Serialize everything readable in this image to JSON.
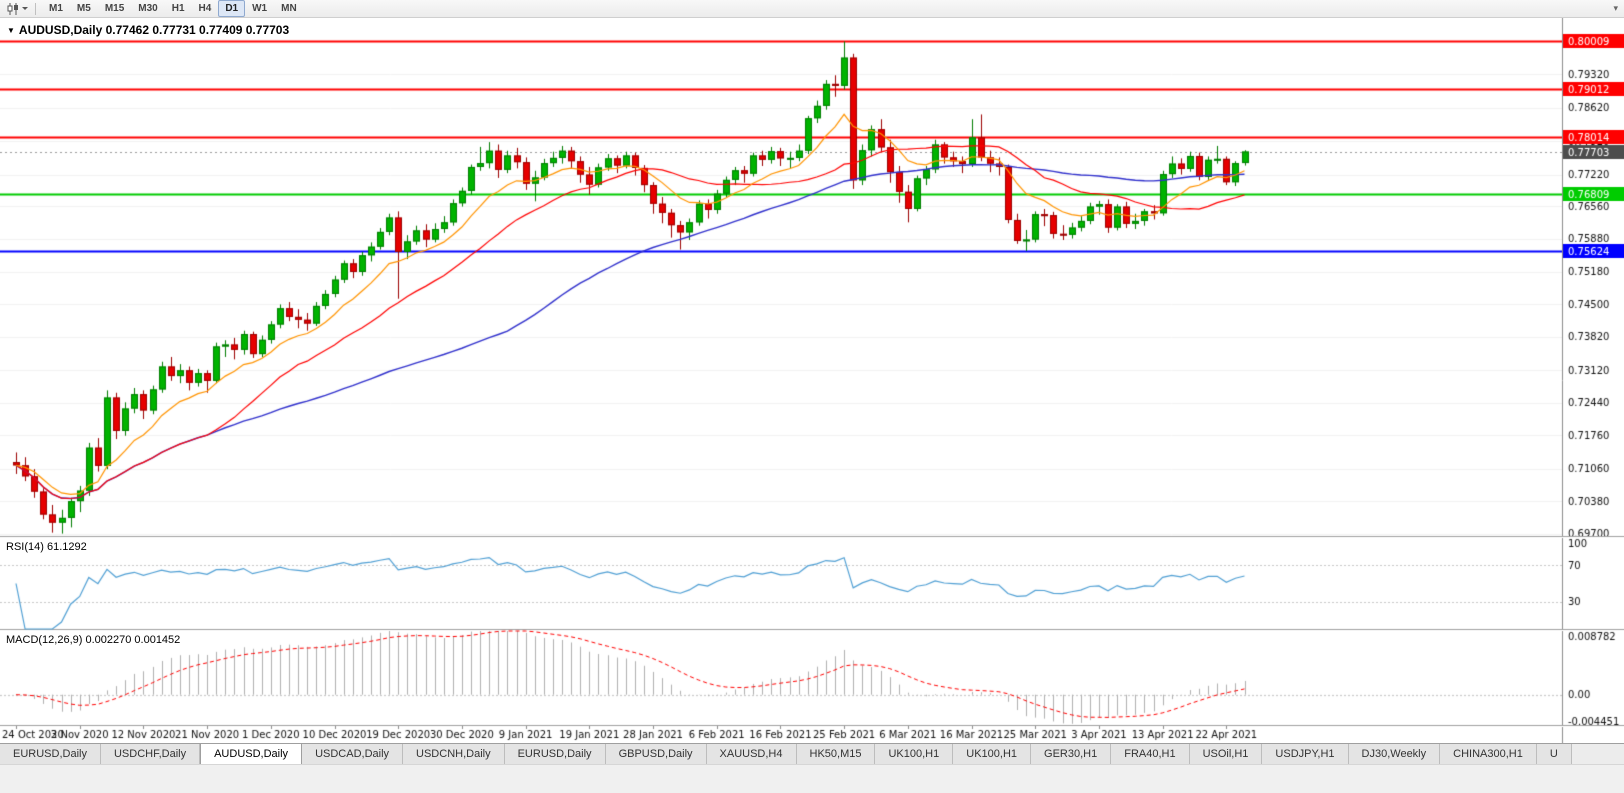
{
  "toolbar": {
    "chart_icon": "candlestick-chart-icon",
    "timeframes": [
      {
        "label": "M1",
        "active": false
      },
      {
        "label": "M5",
        "active": false
      },
      {
        "label": "M15",
        "active": false
      },
      {
        "label": "M30",
        "active": false
      },
      {
        "label": "H1",
        "active": false
      },
      {
        "label": "H4",
        "active": false
      },
      {
        "label": "D1",
        "active": true
      },
      {
        "label": "W1",
        "active": false
      },
      {
        "label": "MN",
        "active": false
      }
    ],
    "overflow_icon": "▾"
  },
  "chart_data": {
    "type": "candlestick",
    "symbol": "AUDUSD",
    "timeframe": "Daily",
    "title_symbol": "AUDUSD,Daily",
    "title_ohlc": "0.77462 0.77731 0.77409 0.77703",
    "current_ohlc": {
      "open": 0.77462,
      "high": 0.77731,
      "low": 0.77409,
      "close": 0.77703
    },
    "price_range": {
      "min": 0.6965,
      "max": 0.805
    },
    "price_axis_labels": [
      "0.79320",
      "0.78620",
      "0.77920",
      "0.77220",
      "0.76560",
      "0.75880",
      "0.75180",
      "0.74500",
      "0.73820",
      "0.73120",
      "0.72440",
      "0.71760",
      "0.71060",
      "0.70380",
      "0.69700"
    ],
    "x_labels": [
      "24 Oct 2020",
      "3 Nov 2020",
      "12 Nov 2020",
      "21 Nov 2020",
      "1 Dec 2020",
      "10 Dec 2020",
      "19 Dec 2020",
      "30 Dec 2020",
      "9 Jan 2021",
      "19 Jan 2021",
      "28 Jan 2021",
      "6 Feb 2021",
      "16 Feb 2021",
      "25 Feb 2021",
      "6 Mar 2021",
      "16 Mar 2021",
      "25 Mar 2021",
      "3 Apr 2021",
      "13 Apr 2021",
      "22 Apr 2021"
    ],
    "x_label_every_n_bars": 7,
    "horizontal_levels": [
      {
        "price": 0.80009,
        "label": "0.80009",
        "color": "#ff0000"
      },
      {
        "price": 0.79012,
        "label": "0.79012",
        "color": "#ff0000"
      },
      {
        "price": 0.78014,
        "label": "0.78014",
        "color": "#ff0000"
      },
      {
        "price": 0.76809,
        "label": "0.76809",
        "color": "#00cc00"
      },
      {
        "price": 0.75624,
        "label": "0.75624",
        "color": "#0000ff"
      }
    ],
    "current_price": {
      "value": 0.77703,
      "label": "0.77703",
      "tag_color": "#4d4d4d"
    },
    "style": {
      "up_fill": "#00b300",
      "up_border": "#007d00",
      "down_fill": "#e60000",
      "down_border": "#9c0000",
      "grid_color": "#f2f2f2",
      "axis_line_color": "#8c8c8c",
      "axis_text_color": "#111111"
    },
    "moving_averages": [
      {
        "type": "ema",
        "period": 10,
        "color": "#ff9400"
      },
      {
        "type": "sma",
        "period": 22,
        "color": "#ff0000"
      },
      {
        "type": "sma",
        "period": 55,
        "color": "#3030cc"
      }
    ],
    "indicators": [
      {
        "name": "RSI",
        "label": "RSI(14) 61.1292",
        "period": 14,
        "levels": [
          70,
          30
        ],
        "axis_labels": [
          "100",
          "70",
          "30"
        ],
        "range": [
          0,
          100
        ],
        "line_color": "#4f9fd4"
      },
      {
        "name": "MACD",
        "label": "MACD(12,26,9) 0.002270 0.001452",
        "fast": 12,
        "slow": 26,
        "signal": 9,
        "axis_labels": [
          "0.008782",
          "0.00",
          "-0.004451"
        ],
        "range": [
          -0.004451,
          0.008782
        ],
        "histogram_color": "#b0b0b0",
        "signal_color": "#ff0000"
      }
    ],
    "candles": [
      [
        0.712,
        0.714,
        0.7095,
        0.7113
      ],
      [
        0.7113,
        0.713,
        0.708,
        0.709
      ],
      [
        0.709,
        0.7105,
        0.7045,
        0.7058
      ],
      [
        0.7058,
        0.7065,
        0.7,
        0.701
      ],
      [
        0.701,
        0.703,
        0.6972,
        0.6993
      ],
      [
        0.6993,
        0.702,
        0.697,
        0.7003
      ],
      [
        0.7003,
        0.7045,
        0.6983,
        0.7038
      ],
      [
        0.7038,
        0.707,
        0.7015,
        0.706
      ],
      [
        0.706,
        0.716,
        0.7049,
        0.715
      ],
      [
        0.715,
        0.717,
        0.71,
        0.7112
      ],
      [
        0.7112,
        0.727,
        0.7105,
        0.7255
      ],
      [
        0.7255,
        0.7265,
        0.7168,
        0.7185
      ],
      [
        0.7185,
        0.7245,
        0.7175,
        0.7232
      ],
      [
        0.7232,
        0.7275,
        0.7222,
        0.7262
      ],
      [
        0.7262,
        0.727,
        0.721,
        0.7228
      ],
      [
        0.7228,
        0.728,
        0.722,
        0.7272
      ],
      [
        0.7272,
        0.733,
        0.7265,
        0.732
      ],
      [
        0.732,
        0.734,
        0.729,
        0.73
      ],
      [
        0.73,
        0.7325,
        0.7285,
        0.7312
      ],
      [
        0.7312,
        0.732,
        0.727,
        0.7286
      ],
      [
        0.7286,
        0.7315,
        0.7278,
        0.7306
      ],
      [
        0.7306,
        0.7312,
        0.7265,
        0.729
      ],
      [
        0.729,
        0.737,
        0.7285,
        0.7362
      ],
      [
        0.7362,
        0.7375,
        0.734,
        0.7366
      ],
      [
        0.7366,
        0.738,
        0.7335,
        0.7355
      ],
      [
        0.7355,
        0.7395,
        0.7345,
        0.7388
      ],
      [
        0.7388,
        0.7393,
        0.7338,
        0.7346
      ],
      [
        0.7346,
        0.7385,
        0.734,
        0.7376
      ],
      [
        0.7376,
        0.7415,
        0.7368,
        0.7408
      ],
      [
        0.7408,
        0.745,
        0.74,
        0.7442
      ],
      [
        0.7442,
        0.7455,
        0.7415,
        0.7424
      ],
      [
        0.7424,
        0.744,
        0.74,
        0.7418
      ],
      [
        0.7418,
        0.7432,
        0.7395,
        0.741
      ],
      [
        0.741,
        0.7455,
        0.7405,
        0.7447
      ],
      [
        0.7447,
        0.748,
        0.744,
        0.7472
      ],
      [
        0.7472,
        0.751,
        0.7465,
        0.7502
      ],
      [
        0.7502,
        0.7542,
        0.7495,
        0.7536
      ],
      [
        0.7536,
        0.7545,
        0.7505,
        0.7518
      ],
      [
        0.7518,
        0.756,
        0.751,
        0.7553
      ],
      [
        0.7553,
        0.758,
        0.754,
        0.7571
      ],
      [
        0.7571,
        0.761,
        0.7565,
        0.7602
      ],
      [
        0.7602,
        0.764,
        0.7595,
        0.7632
      ],
      [
        0.7632,
        0.7645,
        0.7462,
        0.756
      ],
      [
        0.756,
        0.7595,
        0.7545,
        0.7582
      ],
      [
        0.7582,
        0.7615,
        0.7575,
        0.7605
      ],
      [
        0.7605,
        0.7618,
        0.757,
        0.7586
      ],
      [
        0.7586,
        0.762,
        0.758,
        0.7608
      ],
      [
        0.7608,
        0.7635,
        0.76,
        0.7622
      ],
      [
        0.7622,
        0.767,
        0.7615,
        0.7662
      ],
      [
        0.7662,
        0.7695,
        0.7655,
        0.7688
      ],
      [
        0.7688,
        0.7743,
        0.768,
        0.7738
      ],
      [
        0.7738,
        0.778,
        0.773,
        0.7746
      ],
      [
        0.7746,
        0.779,
        0.7735,
        0.7772
      ],
      [
        0.7772,
        0.7785,
        0.7715,
        0.7732
      ],
      [
        0.7732,
        0.7772,
        0.7725,
        0.7762
      ],
      [
        0.7762,
        0.7778,
        0.7735,
        0.7748
      ],
      [
        0.7748,
        0.7758,
        0.769,
        0.7703
      ],
      [
        0.7703,
        0.773,
        0.7666,
        0.7716
      ],
      [
        0.7716,
        0.7755,
        0.771,
        0.7746
      ],
      [
        0.7746,
        0.777,
        0.7738,
        0.7757
      ],
      [
        0.7757,
        0.7782,
        0.7745,
        0.7772
      ],
      [
        0.7772,
        0.778,
        0.7735,
        0.775
      ],
      [
        0.775,
        0.776,
        0.7705,
        0.7722
      ],
      [
        0.7722,
        0.7738,
        0.768,
        0.7701
      ],
      [
        0.7701,
        0.7745,
        0.7695,
        0.7737
      ],
      [
        0.7737,
        0.7765,
        0.773,
        0.7756
      ],
      [
        0.7756,
        0.7762,
        0.7725,
        0.7741
      ],
      [
        0.7741,
        0.777,
        0.7735,
        0.7762
      ],
      [
        0.7762,
        0.7768,
        0.772,
        0.7736
      ],
      [
        0.7736,
        0.7742,
        0.7685,
        0.77
      ],
      [
        0.77,
        0.7706,
        0.764,
        0.7661
      ],
      [
        0.7661,
        0.7675,
        0.762,
        0.7642
      ],
      [
        0.7642,
        0.765,
        0.759,
        0.7616
      ],
      [
        0.7616,
        0.7625,
        0.7565,
        0.7601
      ],
      [
        0.7601,
        0.763,
        0.7585,
        0.7622
      ],
      [
        0.7622,
        0.7668,
        0.7615,
        0.7661
      ],
      [
        0.7661,
        0.767,
        0.763,
        0.7648
      ],
      [
        0.7648,
        0.769,
        0.764,
        0.7682
      ],
      [
        0.7682,
        0.7718,
        0.7675,
        0.7711
      ],
      [
        0.7711,
        0.7738,
        0.77,
        0.7731
      ],
      [
        0.7731,
        0.774,
        0.7705,
        0.7724
      ],
      [
        0.7724,
        0.7768,
        0.7718,
        0.7762
      ],
      [
        0.7762,
        0.7772,
        0.774,
        0.7753
      ],
      [
        0.7753,
        0.778,
        0.7745,
        0.7771
      ],
      [
        0.7771,
        0.7778,
        0.774,
        0.7756
      ],
      [
        0.7756,
        0.777,
        0.7735,
        0.7757
      ],
      [
        0.7757,
        0.7785,
        0.775,
        0.7772
      ],
      [
        0.7772,
        0.7845,
        0.7765,
        0.784
      ],
      [
        0.784,
        0.7877,
        0.783,
        0.7866
      ],
      [
        0.7866,
        0.792,
        0.7858,
        0.7912
      ],
      [
        0.7912,
        0.793,
        0.7885,
        0.7908
      ],
      [
        0.7908,
        0.8001,
        0.79,
        0.7967
      ],
      [
        0.7967,
        0.7975,
        0.7692,
        0.771
      ],
      [
        0.771,
        0.7785,
        0.77,
        0.7773
      ],
      [
        0.7773,
        0.7825,
        0.776,
        0.7817
      ],
      [
        0.7817,
        0.7838,
        0.777,
        0.7779
      ],
      [
        0.7779,
        0.7795,
        0.7705,
        0.7727
      ],
      [
        0.7727,
        0.774,
        0.7663,
        0.7686
      ],
      [
        0.7686,
        0.77,
        0.7622,
        0.765
      ],
      [
        0.765,
        0.772,
        0.7645,
        0.7714
      ],
      [
        0.7714,
        0.774,
        0.77,
        0.7733
      ],
      [
        0.7733,
        0.7795,
        0.7725,
        0.7785
      ],
      [
        0.7785,
        0.779,
        0.7745,
        0.7758
      ],
      [
        0.7758,
        0.777,
        0.7738,
        0.775
      ],
      [
        0.775,
        0.776,
        0.7725,
        0.7744
      ],
      [
        0.7744,
        0.7838,
        0.7738,
        0.78
      ],
      [
        0.78,
        0.7848,
        0.775,
        0.7758
      ],
      [
        0.7758,
        0.7772,
        0.7727,
        0.7745
      ],
      [
        0.7745,
        0.7758,
        0.772,
        0.7738
      ],
      [
        0.7738,
        0.7743,
        0.762,
        0.7627
      ],
      [
        0.7627,
        0.764,
        0.7577,
        0.7583
      ],
      [
        0.7583,
        0.7606,
        0.7562,
        0.7586
      ],
      [
        0.7586,
        0.7645,
        0.758,
        0.7639
      ],
      [
        0.7639,
        0.765,
        0.7614,
        0.7637
      ],
      [
        0.7637,
        0.7644,
        0.7588,
        0.7598
      ],
      [
        0.7598,
        0.7616,
        0.7585,
        0.7596
      ],
      [
        0.7596,
        0.7621,
        0.7588,
        0.7611
      ],
      [
        0.7611,
        0.7635,
        0.7603,
        0.7625
      ],
      [
        0.7625,
        0.7663,
        0.7618,
        0.7655
      ],
      [
        0.7655,
        0.7667,
        0.7638,
        0.766
      ],
      [
        0.766,
        0.767,
        0.76,
        0.7611
      ],
      [
        0.7611,
        0.766,
        0.7605,
        0.7655
      ],
      [
        0.7655,
        0.7665,
        0.761,
        0.7619
      ],
      [
        0.7619,
        0.764,
        0.7608,
        0.7625
      ],
      [
        0.7625,
        0.765,
        0.7615,
        0.7645
      ],
      [
        0.7645,
        0.7658,
        0.7628,
        0.7641
      ],
      [
        0.7641,
        0.773,
        0.7636,
        0.7723
      ],
      [
        0.7723,
        0.776,
        0.7715,
        0.7745
      ],
      [
        0.7745,
        0.7756,
        0.7722,
        0.7734
      ],
      [
        0.7734,
        0.777,
        0.7728,
        0.7761
      ],
      [
        0.7761,
        0.7768,
        0.771,
        0.7717
      ],
      [
        0.7717,
        0.776,
        0.7711,
        0.7753
      ],
      [
        0.7753,
        0.7782,
        0.7745,
        0.7755
      ],
      [
        0.7755,
        0.776,
        0.77,
        0.7706
      ],
      [
        0.7706,
        0.775,
        0.7698,
        0.7746
      ],
      [
        0.77462,
        0.77731,
        0.77409,
        0.77703
      ]
    ]
  },
  "tabs": {
    "items": [
      {
        "label": "EURUSD,Daily",
        "active": false
      },
      {
        "label": "USDCHF,Daily",
        "active": false
      },
      {
        "label": "AUDUSD,Daily",
        "active": true
      },
      {
        "label": "USDCAD,Daily",
        "active": false
      },
      {
        "label": "USDCNH,Daily",
        "active": false
      },
      {
        "label": "EURUSD,Daily",
        "active": false
      },
      {
        "label": "GBPUSD,Daily",
        "active": false
      },
      {
        "label": "XAUUSD,H4",
        "active": false
      },
      {
        "label": "HK50,M15",
        "active": false
      },
      {
        "label": "UK100,H1",
        "active": false
      },
      {
        "label": "UK100,H1",
        "active": false
      },
      {
        "label": "GER30,H1",
        "active": false
      },
      {
        "label": "FRA40,H1",
        "active": false
      },
      {
        "label": "USOil,H1",
        "active": false
      },
      {
        "label": "USDJPY,H1",
        "active": false
      },
      {
        "label": "DJ30,Weekly",
        "active": false
      },
      {
        "label": "CHINA300,H1",
        "active": false
      },
      {
        "label": "U",
        "active": false
      }
    ]
  }
}
